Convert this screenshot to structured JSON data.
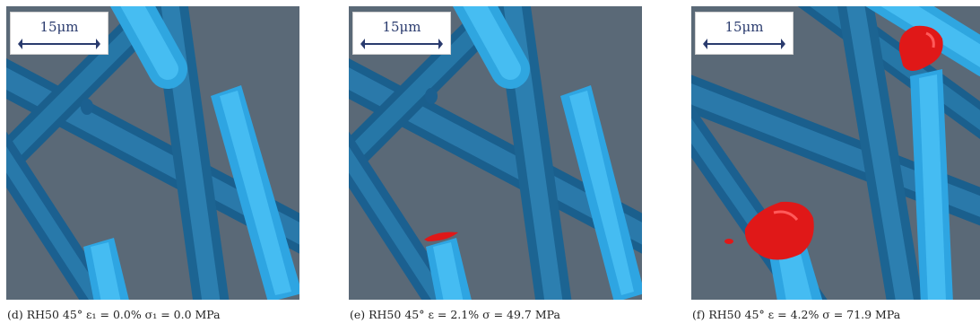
{
  "panels": [
    {
      "scale_label": "15μm",
      "caption": "(d) RH50 45° ε₁ = 0.0% σ₁ = 0.0 MPa",
      "damage_regions": 0
    },
    {
      "scale_label": "15μm",
      "caption": "(e) RH50 45° ε = 2.1% σ = 49.7 MPa",
      "damage_regions": 1
    },
    {
      "scale_label": "15μm",
      "caption": "(f) RH50 45° ε = 4.2% σ = 71.9 MPa",
      "damage_regions": 2
    }
  ],
  "colors": {
    "background": "#5b6a78",
    "fiber_dark": "#1e6c9e",
    "fiber_light": "#38b2ee",
    "damage": "#e01818"
  }
}
